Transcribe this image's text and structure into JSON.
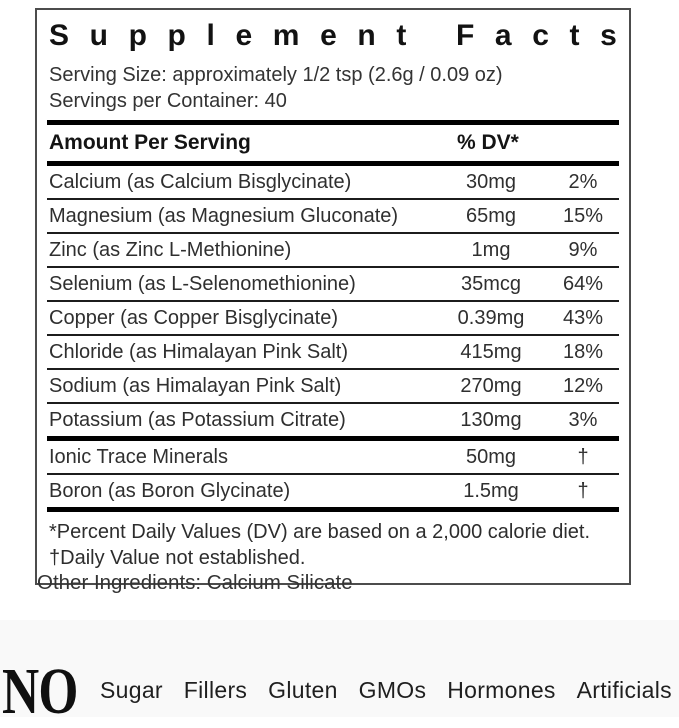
{
  "panel": {
    "title": "Supplement Facts",
    "serving_size": "Serving Size: approximately 1/2 tsp (2.6g / 0.09 oz)",
    "servings_per_container": "Servings per Container: 40",
    "header": {
      "amount_label": "Amount Per Serving",
      "dv_label": "% DV*"
    },
    "rows": [
      {
        "name": "Calcium (as Calcium Bisglycinate)",
        "amount": "30mg",
        "dv": "2%"
      },
      {
        "name": "Magnesium (as Magnesium Gluconate)",
        "amount": "65mg",
        "dv": "15%"
      },
      {
        "name": "Zinc (as Zinc L-Methionine)",
        "amount": "1mg",
        "dv": "9%"
      },
      {
        "name": "Selenium (as L-Selenomethionine)",
        "amount": "35mcg",
        "dv": "64%"
      },
      {
        "name": "Copper (as Copper Bisglycinate)",
        "amount": "0.39mg",
        "dv": "43%"
      },
      {
        "name": "Chloride (as Himalayan Pink Salt)",
        "amount": "415mg",
        "dv": "18%"
      },
      {
        "name": "Sodium (as Himalayan Pink Salt)",
        "amount": "270mg",
        "dv": "12%"
      },
      {
        "name": "Potassium (as Potassium Citrate)",
        "amount": "130mg",
        "dv": "3%"
      }
    ],
    "secondary_rows": [
      {
        "name": "Ionic Trace Minerals",
        "amount": "50mg",
        "dv": "†"
      },
      {
        "name": "Boron (as Boron Glycinate)",
        "amount": "1.5mg",
        "dv": "†"
      }
    ],
    "footnote": "*Percent Daily Values (DV) are based on a 2,000 calorie diet.  †Daily Value not established."
  },
  "other_ingredients": "Other Ingredients: Calcium Silicate",
  "no_banner": {
    "no_label": "NO",
    "items": [
      "Sugar",
      "Fillers",
      "Gluten",
      "GMOs",
      "Hormones",
      "Artificials"
    ]
  },
  "colors": {
    "banner_background": "#f9f9f9",
    "text": "#2d2d2d",
    "rule_black": "#000000",
    "box_border": "#4c4c4c"
  }
}
